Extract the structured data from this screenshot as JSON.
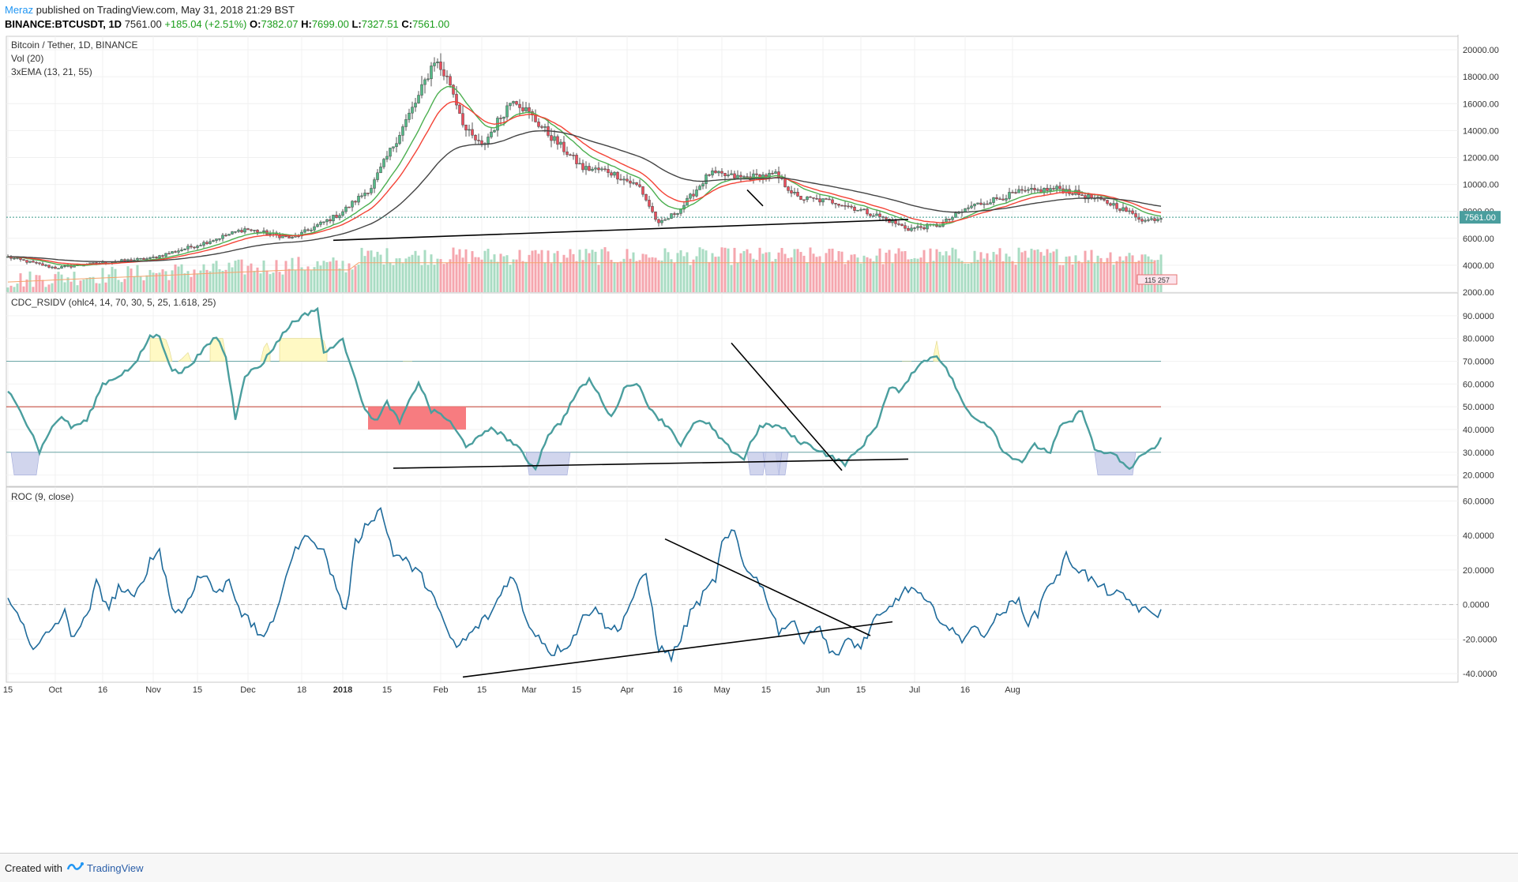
{
  "header": {
    "author": "Meraz",
    "published": "published on TradingView.com, May 31, 2018 21:29 BST",
    "symbol": "BINANCE:BTCUSDT, 1D",
    "last": "7561.00",
    "change": "+185.04 (+2.51%)",
    "o_label": "O:",
    "o": "7382.07",
    "h_label": "H:",
    "h": "7699.00",
    "l_label": "L:",
    "l": "7327.51",
    "c_label": "C:",
    "c": "7561.00"
  },
  "footer": {
    "created": "Created with",
    "brand": "TradingView"
  },
  "colors": {
    "up": "#53b987",
    "down": "#eb4d5c",
    "ema13": "#4caf50",
    "ema21": "#f44336",
    "ema55": "#444444",
    "rsi": "#4a9e9e",
    "roc": "#1f6b9b",
    "obFill": "#fff9c4",
    "osFill": "#c5cae9",
    "redBox": "#f77c80"
  },
  "chart_data": [
    {
      "type": "candlestick",
      "title": "Bitcoin / Tether, 1D, BINANCE",
      "legend": [
        "Vol (20)",
        "3xEMA (13, 21, 55)"
      ],
      "ylim": [
        2000,
        21000
      ],
      "y_ticks": [
        "20000.00",
        "18000.00",
        "16000.00",
        "14000.00",
        "12000.00",
        "10000.00",
        "8000.00",
        "6000.00",
        "4000.00",
        "2000.00"
      ],
      "y_tick_values": [
        20000,
        18000,
        16000,
        14000,
        12000,
        10000,
        8000,
        6000,
        4000,
        2000
      ],
      "last_price_label": "7561.00",
      "volume_badge": "115 257",
      "close_anchors": [
        [
          0,
          4600
        ],
        [
          15,
          3800
        ],
        [
          30,
          4200
        ],
        [
          45,
          4500
        ],
        [
          60,
          5500
        ],
        [
          75,
          6700
        ],
        [
          90,
          6000
        ],
        [
          105,
          7800
        ],
        [
          115,
          9800
        ],
        [
          130,
          16500
        ],
        [
          135,
          19300
        ],
        [
          140,
          17500
        ],
        [
          145,
          14000
        ],
        [
          150,
          12800
        ],
        [
          160,
          16500
        ],
        [
          170,
          14000
        ],
        [
          182,
          11200
        ],
        [
          190,
          11000
        ],
        [
          200,
          9800
        ],
        [
          206,
          7000
        ],
        [
          213,
          8200
        ],
        [
          222,
          10800
        ],
        [
          232,
          10500
        ],
        [
          243,
          10700
        ],
        [
          250,
          9000
        ],
        [
          262,
          8700
        ],
        [
          275,
          7700
        ],
        [
          285,
          6700
        ],
        [
          295,
          7000
        ],
        [
          305,
          8400
        ],
        [
          320,
          9400
        ],
        [
          333,
          9700
        ],
        [
          340,
          9200
        ],
        [
          350,
          8500
        ],
        [
          360,
          7300
        ],
        [
          365,
          7561
        ]
      ],
      "ema_last": {
        "ema13": 7700,
        "ema21": 7950,
        "ema55": 8400
      },
      "volume_range": [
        0,
        300000
      ],
      "trendlines": [
        {
          "start": [
            "2017-12-26",
            5850
          ],
          "end": [
            "2018-06-26",
            7400
          ]
        },
        {
          "start": [
            "2018-05-06",
            9600
          ],
          "end": [
            "2018-05-11",
            8400
          ]
        }
      ]
    },
    {
      "type": "line",
      "title": "CDC_RSIDV (ohlc4, 14, 70, 30, 5, 25, 1.618, 25)",
      "ylim": [
        15,
        100
      ],
      "y_ticks": [
        "90.0000",
        "80.0000",
        "70.0000",
        "60.0000",
        "50.0000",
        "40.0000",
        "30.0000",
        "20.0000"
      ],
      "y_tick_values": [
        90,
        80,
        70,
        60,
        50,
        40,
        30,
        20
      ],
      "levels": [
        70,
        50,
        30
      ],
      "rsi_anchors": [
        [
          0,
          57
        ],
        [
          8,
          38
        ],
        [
          10,
          30
        ],
        [
          13,
          39
        ],
        [
          17,
          46
        ],
        [
          20,
          41
        ],
        [
          25,
          44
        ],
        [
          30,
          60
        ],
        [
          33,
          62
        ],
        [
          40,
          68
        ],
        [
          45,
          81
        ],
        [
          48,
          81
        ],
        [
          52,
          66
        ],
        [
          55,
          65
        ],
        [
          60,
          72
        ],
        [
          66,
          81
        ],
        [
          69,
          72
        ],
        [
          72,
          45
        ],
        [
          75,
          64
        ],
        [
          80,
          68
        ],
        [
          86,
          80
        ],
        [
          90,
          87
        ],
        [
          96,
          92
        ],
        [
          98,
          93
        ],
        [
          100,
          73
        ],
        [
          103,
          77
        ],
        [
          106,
          79
        ],
        [
          110,
          63
        ],
        [
          113,
          48
        ],
        [
          117,
          44
        ],
        [
          120,
          52
        ],
        [
          124,
          43
        ],
        [
          128,
          55
        ],
        [
          130,
          61
        ],
        [
          134,
          48
        ],
        [
          137,
          47
        ],
        [
          140,
          43
        ],
        [
          145,
          33
        ],
        [
          150,
          37
        ],
        [
          153,
          41
        ],
        [
          157,
          37
        ],
        [
          161,
          33
        ],
        [
          164,
          27
        ],
        [
          167,
          23
        ],
        [
          171,
          38
        ],
        [
          175,
          43
        ],
        [
          180,
          56
        ],
        [
          184,
          62
        ],
        [
          188,
          53
        ],
        [
          191,
          45
        ],
        [
          195,
          58
        ],
        [
          199,
          61
        ],
        [
          202,
          52
        ],
        [
          206,
          45
        ],
        [
          210,
          40
        ],
        [
          213,
          33
        ],
        [
          218,
          44
        ],
        [
          222,
          42
        ],
        [
          226,
          35
        ],
        [
          229,
          31
        ],
        [
          233,
          27
        ],
        [
          235,
          34
        ],
        [
          238,
          41
        ],
        [
          241,
          42
        ],
        [
          245,
          41
        ],
        [
          250,
          35
        ],
        [
          254,
          33
        ],
        [
          258,
          30
        ],
        [
          262,
          27
        ],
        [
          265,
          25
        ],
        [
          270,
          32
        ],
        [
          275,
          42
        ],
        [
          279,
          58
        ],
        [
          283,
          57
        ],
        [
          286,
          65
        ],
        [
          290,
          70
        ],
        [
          294,
          73
        ],
        [
          299,
          62
        ],
        [
          302,
          52
        ],
        [
          305,
          46
        ],
        [
          308,
          44
        ],
        [
          312,
          40
        ],
        [
          315,
          30
        ],
        [
          318,
          28
        ],
        [
          321,
          26
        ],
        [
          325,
          33
        ],
        [
          330,
          30
        ],
        [
          333,
          41
        ],
        [
          337,
          44
        ],
        [
          340,
          49
        ],
        [
          344,
          31
        ],
        [
          347,
          30
        ],
        [
          351,
          28
        ],
        [
          355,
          22
        ],
        [
          358,
          28
        ],
        [
          362,
          31
        ],
        [
          365,
          36
        ]
      ],
      "overbought_shading": [
        [
          45,
          52
        ],
        [
          54,
          58
        ],
        [
          64,
          69
        ],
        [
          80,
          83
        ],
        [
          86,
          101
        ],
        [
          125,
          128
        ],
        [
          283,
          286
        ],
        [
          293,
          295
        ]
      ],
      "oversold_shading": [
        [
          1,
          10
        ],
        [
          164,
          178
        ],
        [
          234,
          240
        ],
        [
          243,
          247
        ],
        [
          239,
          245
        ],
        [
          344,
          357
        ]
      ],
      "red_box": {
        "from": 114,
        "to": 145,
        "y_top": 50,
        "y_bottom": 40
      },
      "trendlines": [
        {
          "start": [
            "2018-01-14",
            23
          ],
          "end": [
            "2018-06-26",
            27
          ]
        },
        {
          "start": [
            "2018-05-01",
            78
          ],
          "end": [
            "2018-06-05",
            22
          ]
        }
      ]
    },
    {
      "type": "line",
      "title": "ROC (9, close)",
      "ylim": [
        -45,
        68
      ],
      "y_ticks": [
        "60.0000",
        "40.0000",
        "20.0000",
        "0.0000",
        "-20.0000",
        "-40.0000"
      ],
      "y_tick_values": [
        60,
        40,
        20,
        0,
        -20,
        -40
      ],
      "zero_line": 0,
      "roc_anchors": [
        [
          0,
          2
        ],
        [
          5,
          -10
        ],
        [
          8,
          -28
        ],
        [
          12,
          -18
        ],
        [
          18,
          -5
        ],
        [
          20,
          -18
        ],
        [
          25,
          -8
        ],
        [
          28,
          12
        ],
        [
          32,
          -2
        ],
        [
          35,
          10
        ],
        [
          40,
          3
        ],
        [
          45,
          25
        ],
        [
          48,
          32
        ],
        [
          52,
          -2
        ],
        [
          55,
          -5
        ],
        [
          60,
          15
        ],
        [
          63,
          17
        ],
        [
          66,
          5
        ],
        [
          70,
          15
        ],
        [
          74,
          -5
        ],
        [
          80,
          -18
        ],
        [
          84,
          -12
        ],
        [
          88,
          18
        ],
        [
          92,
          35
        ],
        [
          96,
          40
        ],
        [
          100,
          30
        ],
        [
          104,
          10
        ],
        [
          107,
          -5
        ],
        [
          110,
          35
        ],
        [
          114,
          48
        ],
        [
          118,
          55
        ],
        [
          122,
          30
        ],
        [
          126,
          25
        ],
        [
          130,
          18
        ],
        [
          134,
          8
        ],
        [
          138,
          -12
        ],
        [
          142,
          -25
        ],
        [
          146,
          -18
        ],
        [
          150,
          -10
        ],
        [
          153,
          -5
        ],
        [
          157,
          10
        ],
        [
          160,
          18
        ],
        [
          164,
          -10
        ],
        [
          168,
          -18
        ],
        [
          172,
          -28
        ],
        [
          178,
          -22
        ],
        [
          182,
          -8
        ],
        [
          186,
          0
        ],
        [
          190,
          -15
        ],
        [
          194,
          -12
        ],
        [
          198,
          5
        ],
        [
          202,
          18
        ],
        [
          206,
          -25
        ],
        [
          210,
          -30
        ],
        [
          213,
          -20
        ],
        [
          216,
          -5
        ],
        [
          220,
          5
        ],
        [
          224,
          15
        ],
        [
          226,
          35
        ],
        [
          230,
          42
        ],
        [
          233,
          22
        ],
        [
          236,
          18
        ],
        [
          240,
          5
        ],
        [
          244,
          -15
        ],
        [
          248,
          -10
        ],
        [
          252,
          -20
        ],
        [
          256,
          -12
        ],
        [
          260,
          -25
        ],
        [
          263,
          -30
        ],
        [
          266,
          -20
        ],
        [
          270,
          -25
        ],
        [
          274,
          -10
        ],
        [
          278,
          -5
        ],
        [
          282,
          5
        ],
        [
          286,
          10
        ],
        [
          290,
          2
        ],
        [
          294,
          -5
        ],
        [
          298,
          -15
        ],
        [
          302,
          -20
        ],
        [
          305,
          -12
        ],
        [
          308,
          -18
        ],
        [
          312,
          -10
        ],
        [
          316,
          -2
        ],
        [
          320,
          2
        ],
        [
          323,
          -10
        ],
        [
          326,
          -5
        ],
        [
          329,
          12
        ],
        [
          332,
          15
        ],
        [
          335,
          28
        ],
        [
          338,
          22
        ],
        [
          341,
          18
        ],
        [
          344,
          12
        ],
        [
          348,
          8
        ],
        [
          352,
          5
        ],
        [
          355,
          2
        ],
        [
          358,
          -2
        ],
        [
          361,
          -5
        ],
        [
          365,
          -5
        ]
      ],
      "trendlines": [
        {
          "start": [
            "2018-02-05",
            -42
          ],
          "end": [
            "2018-06-21",
            -10
          ]
        },
        {
          "start": [
            "2018-04-10",
            38
          ],
          "end": [
            "2018-06-14",
            -18
          ]
        }
      ]
    }
  ],
  "time_axis": {
    "ticks": [
      "15",
      "Oct",
      "16",
      "Nov",
      "15",
      "Dec",
      "18",
      "2018",
      "15",
      "Feb",
      "15",
      "Mar",
      "15",
      "Apr",
      "16",
      "May",
      "15",
      "Jun",
      "15",
      "Jul",
      "16",
      "Aug"
    ],
    "tick_days": [
      0,
      15,
      30,
      46,
      60,
      76,
      93,
      106,
      120,
      137,
      150,
      165,
      180,
      196,
      212,
      226,
      240,
      258,
      270,
      287,
      303,
      318
    ]
  }
}
